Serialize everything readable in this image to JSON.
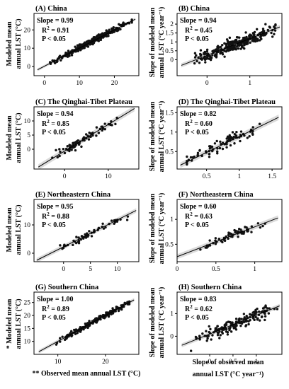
{
  "figure": {
    "ylabel_left": [
      "Modeled mean",
      "annual LST (°C)"
    ],
    "ylabel_right": [
      "Slope of modeled mean",
      "annual LST (°C year⁻¹)"
    ],
    "ylabel_left_last": [
      "* Modeled mean",
      "annual LST (°C)"
    ],
    "xlabel_left": "** Observed mean annual LST (°C)",
    "xlabel_right": [
      "Slope of observed mean",
      "annual  LST (°C year⁻¹)"
    ]
  },
  "chart_data": [
    {
      "type": "scatter",
      "title": "(A) China",
      "slope": "Slope = 0.99",
      "r2": "0.91",
      "p": "P < 0.05",
      "xlim": [
        -3,
        27
      ],
      "ylim": [
        -5,
        29
      ],
      "xticks": [
        0,
        10,
        20
      ],
      "yticks": [
        0,
        10,
        20
      ],
      "fit": {
        "x": [
          -2,
          26
        ],
        "y": [
          -1.8,
          25.9
        ]
      },
      "band": 0.8,
      "points": {
        "seed": 11,
        "n": 280,
        "xmin": -1,
        "xmax": 25,
        "xmode": 14,
        "a": 0.2,
        "b": 0.99,
        "noise": 1.6
      }
    },
    {
      "type": "scatter",
      "title": "(B) China",
      "slope": "Slope = 0.94",
      "r2": "0.45",
      "p": "P < 0.05",
      "xlim": [
        -0.7,
        1.75
      ],
      "ylim": [
        -0.9,
        2.6
      ],
      "xticks": [
        0,
        1
      ],
      "yticks": [
        0,
        0.5,
        1,
        1.5,
        2
      ],
      "fit": {
        "x": [
          -0.6,
          1.7
        ],
        "y": [
          -0.32,
          1.84
        ]
      },
      "band": 0.12,
      "points": {
        "seed": 23,
        "n": 280,
        "xmin": -0.5,
        "xmax": 1.6,
        "xmode": 0.7,
        "a": 0.24,
        "b": 0.94,
        "noise": 0.36
      }
    },
    {
      "type": "scatter",
      "title": "(C) The Qinghai-Tibet Plateau",
      "slope": "Slope = 0.94",
      "r2": "0.85",
      "p": "P < 0.05",
      "xlim": [
        -7,
        17
      ],
      "ylim": [
        -7,
        15
      ],
      "xticks": [
        0,
        10
      ],
      "yticks": [
        0,
        5,
        10
      ],
      "fit": {
        "x": [
          -6,
          16
        ],
        "y": [
          -6.3,
          14.4
        ]
      },
      "band": 1.0,
      "points": {
        "seed": 37,
        "n": 75,
        "xmin": -5,
        "xmax": 14,
        "xmode": 3,
        "a": -0.6,
        "b": 0.94,
        "noise": 1.6
      }
    },
    {
      "type": "scatter",
      "title": "(D) The Qinghai-Tibet Plateau",
      "slope": "Slope = 0.82",
      "r2": "0.60",
      "p": "P < 0.05",
      "xlim": [
        0.05,
        1.65
      ],
      "ylim": [
        0.05,
        1.65
      ],
      "xticks": [
        0.5,
        1,
        1.5
      ],
      "yticks": [
        0.5,
        1,
        1.5
      ],
      "fit": {
        "x": [
          0.1,
          1.6
        ],
        "y": [
          0.15,
          1.38
        ]
      },
      "band": 0.07,
      "points": {
        "seed": 49,
        "n": 85,
        "xmin": 0.2,
        "xmax": 1.58,
        "xmode": 0.65,
        "a": 0.07,
        "b": 0.82,
        "noise": 0.15
      }
    },
    {
      "type": "scatter",
      "title": "(E) Northeastern China",
      "slope": "Slope = 0.95",
      "r2": "0.88",
      "p": "P < 0.05",
      "xlim": [
        -5.5,
        14
      ],
      "ylim": [
        -3,
        19
      ],
      "xticks": [
        0,
        5,
        10
      ],
      "yticks": [
        0,
        10
      ],
      "fit": {
        "x": [
          -5,
          13.5
        ],
        "y": [
          -2.5,
          15.1
        ]
      },
      "band": 0.8,
      "points": {
        "seed": 53,
        "n": 55,
        "xmin": -3,
        "xmax": 12,
        "xmode": 5,
        "a": 2.25,
        "b": 0.95,
        "noise": 1.2
      }
    },
    {
      "type": "scatter",
      "title": "(F) Northeastern China",
      "slope": "Slope = 0.60",
      "r2": "0.63",
      "p": "P < 0.05",
      "xlim": [
        0,
        1.35
      ],
      "ylim": [
        0.15,
        1.4
      ],
      "xticks": [
        0,
        0.5,
        1
      ],
      "yticks": [
        0.5,
        1
      ],
      "fit": {
        "x": [
          0,
          1.3
        ],
        "y": [
          0.25,
          1.03
        ]
      },
      "band": 0.05,
      "points": {
        "seed": 67,
        "n": 60,
        "xmin": 0.3,
        "xmax": 1.25,
        "xmode": 0.75,
        "a": 0.25,
        "b": 0.6,
        "noise": 0.08
      }
    },
    {
      "type": "scatter",
      "title": "(G) Southern China",
      "slope": "Slope = 1.00",
      "r2": "0.89",
      "p": "P < 0.05",
      "xlim": [
        5,
        27
      ],
      "ylim": [
        5,
        29
      ],
      "xticks": [
        10,
        20
      ],
      "yticks": [
        10,
        15,
        20,
        25
      ],
      "fit": {
        "x": [
          6,
          26
        ],
        "y": [
          6,
          26
        ]
      },
      "band": 0.7,
      "points": {
        "seed": 71,
        "n": 170,
        "xmin": 7,
        "xmax": 25,
        "xmode": 18,
        "a": 0,
        "b": 1.0,
        "noise": 1.1
      }
    },
    {
      "type": "scatter",
      "title": "(H) Southern China",
      "slope": "Slope = 0.83",
      "r2": "0.62",
      "p": "P < 0.05",
      "xlim": [
        -0.7,
        1.55
      ],
      "ylim": [
        -0.8,
        1.95
      ],
      "xticks": [
        0,
        0.5,
        1
      ],
      "yticks": [
        0,
        1
      ],
      "fit": {
        "x": [
          -0.6,
          1.5
        ],
        "y": [
          -0.4,
          1.34
        ]
      },
      "band": 0.09,
      "points": {
        "seed": 83,
        "n": 170,
        "xmin": -0.55,
        "xmax": 1.45,
        "xmode": 0.55,
        "a": 0.1,
        "b": 0.83,
        "noise": 0.28
      }
    }
  ]
}
